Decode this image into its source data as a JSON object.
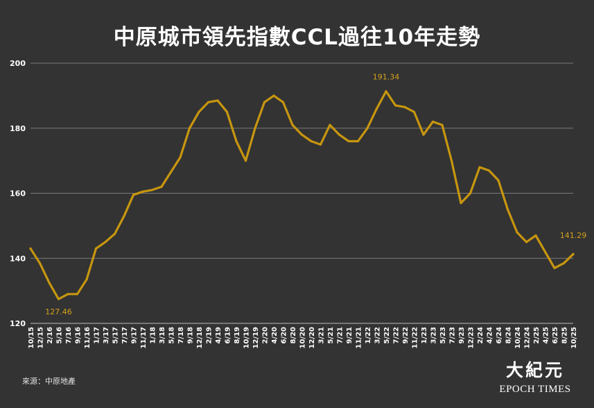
{
  "chart_data": {
    "type": "line",
    "title": "中原城市領先指數CCL過往10年走勢",
    "source": "來源：中原地產",
    "ylim": [
      120,
      200
    ],
    "y_ticks": [
      120,
      140,
      160,
      180,
      200
    ],
    "grid": true,
    "x_tick_labels": [
      "10/15",
      "12/15",
      "2/16",
      "5/16",
      "7/16",
      "9/16",
      "11/16",
      "1/17",
      "3/17",
      "5/17",
      "7/17",
      "9/17",
      "11/17",
      "1/18",
      "3/18",
      "5/18",
      "7/18",
      "9/18",
      "12/18",
      "2/19",
      "4/19",
      "6/19",
      "8/19",
      "10/19",
      "12/19",
      "2/20",
      "4/20",
      "6/20",
      "8/20",
      "10/20",
      "12/20",
      "3/21",
      "5/21",
      "7/21",
      "9/21",
      "11/21",
      "1/22",
      "3/22",
      "5/22",
      "7/22",
      "9/22",
      "11/22",
      "1/23",
      "3/23",
      "5/23",
      "7/23",
      "9/23",
      "12/23",
      "2/24",
      "4/24",
      "6/24",
      "8/24",
      "10/24",
      "12/24",
      "2/25",
      "4/25",
      "6/25",
      "8/25",
      "10/25"
    ],
    "annotations": {
      "min": "127.46",
      "max": "191.34",
      "last": "141.29"
    },
    "series": [
      {
        "color": "#c7960f",
        "x": [
          0,
          1,
          2,
          3,
          4,
          5,
          6,
          7,
          8,
          9,
          10,
          11,
          12,
          13,
          14,
          15,
          16,
          17,
          18,
          19,
          20,
          21,
          22,
          23,
          24,
          25,
          26,
          27,
          28,
          29,
          30,
          31,
          32,
          33,
          34,
          35,
          36,
          37,
          38,
          39,
          40,
          41,
          42,
          43,
          44,
          45,
          46,
          47,
          48,
          49,
          50,
          51,
          52,
          53,
          54,
          55,
          56,
          57,
          58
        ],
        "values": [
          143.0,
          138.5,
          132.5,
          127.46,
          129.0,
          129.0,
          133.5,
          143.0,
          145.0,
          147.5,
          153.0,
          159.5,
          160.5,
          161.0,
          162.0,
          166.5,
          171.0,
          180.0,
          185.0,
          188.0,
          188.5,
          185.0,
          176.0,
          170.0,
          180.0,
          188.0,
          190.0,
          188.0,
          181.0,
          178.0,
          176.0,
          175.0,
          181.0,
          178.0,
          176.0,
          176.0,
          180.0,
          186.0,
          191.34,
          187.0,
          186.5,
          185.0,
          178.0,
          182.0,
          181.0,
          170.0,
          157.0,
          160.0,
          168.0,
          167.0,
          164.0,
          155.0,
          148.0,
          145.0,
          147.0,
          142.0,
          137.0,
          138.5,
          141.29
        ]
      }
    ]
  },
  "brand": {
    "cn": "大紀元",
    "en": "EPOCH TIMES"
  }
}
